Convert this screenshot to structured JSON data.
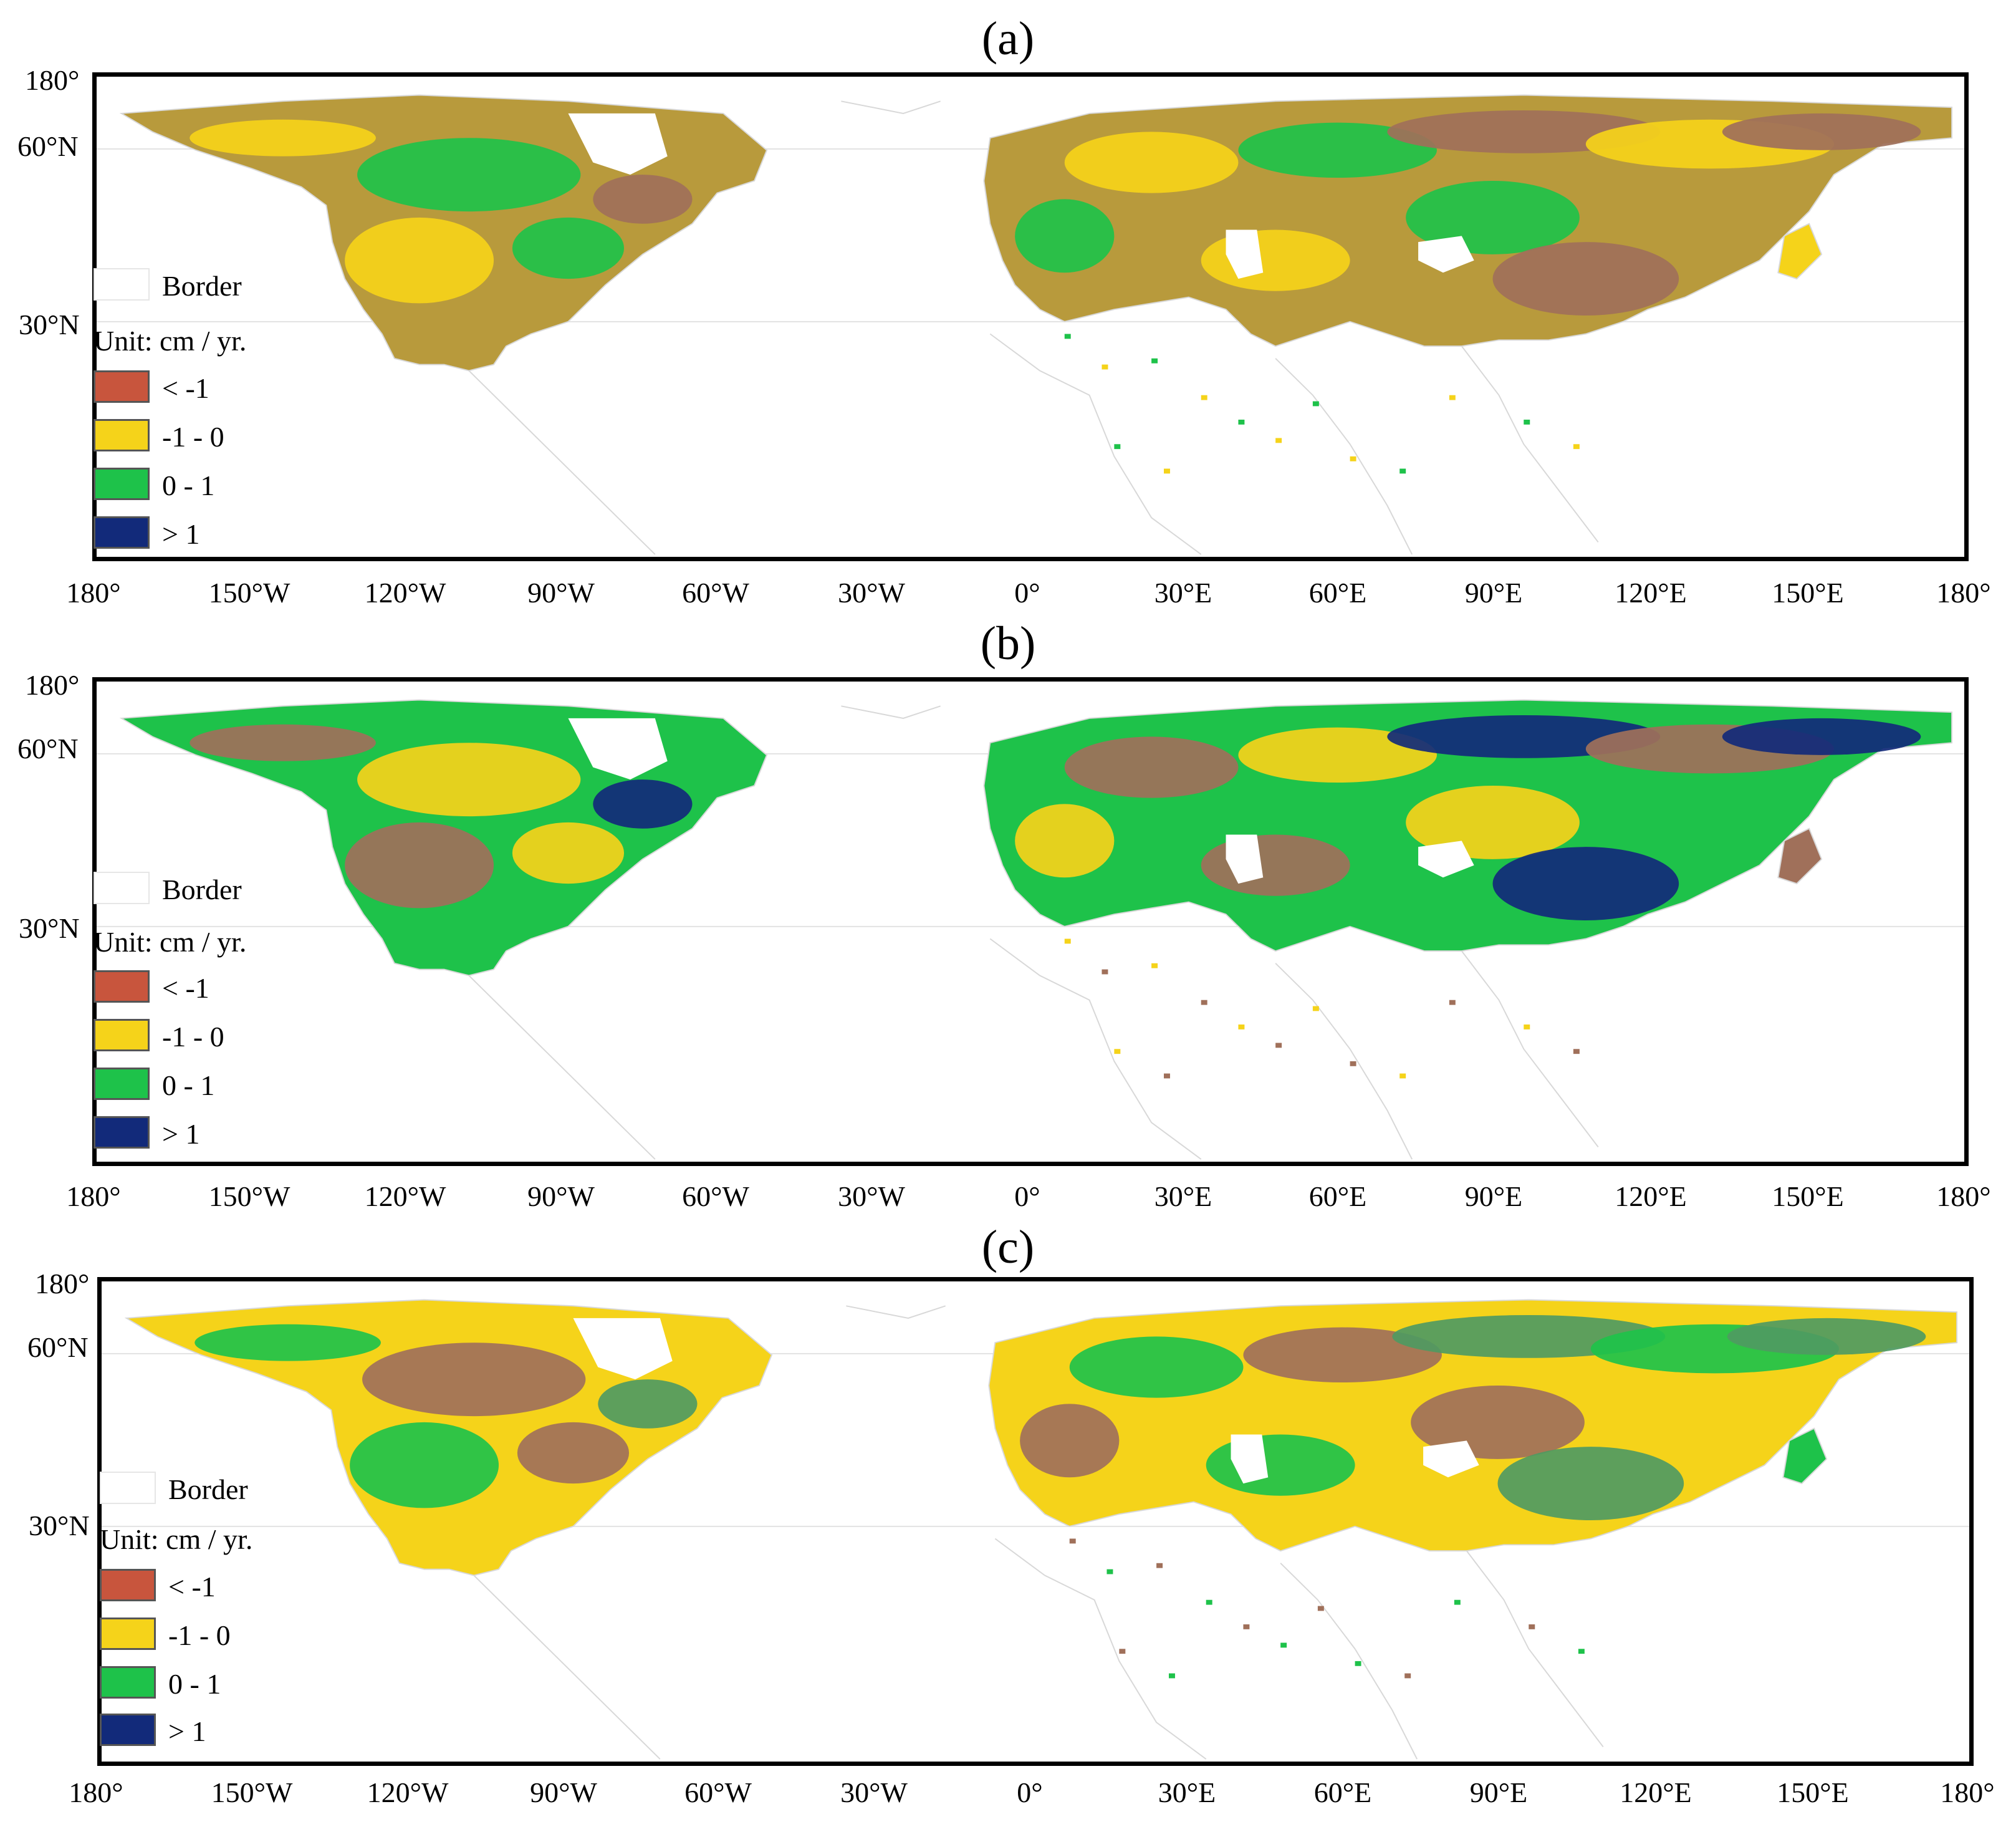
{
  "colors": {
    "lt_neg1": "#c8553d",
    "neg1_0": "#f5d31a",
    "p0_1": "#1ec24a",
    "gt1": "#122a7a",
    "olive": "#b89a3c",
    "brown": "#a0705a",
    "darkgreen": "#4f9a62",
    "navy_mix": "#2b3f7a",
    "border_line": "#d8d8d8"
  },
  "axes": {
    "x_ticks": [
      "180°",
      "150°W",
      "120°W",
      "90°W",
      "60°W",
      "30°W",
      "0°",
      "30°E",
      "60°E",
      "90°E",
      "120°E",
      "150°E",
      "180°"
    ],
    "y_ticks": [
      "180°",
      "60°N",
      "30°N"
    ]
  },
  "legend": {
    "border_label": "Border",
    "unit_label": "Unit: cm / yr.",
    "classes": [
      {
        "label": "< -1",
        "color": "#c8553d"
      },
      {
        "label": "-1 - 0",
        "color": "#f5d31a"
      },
      {
        "label": "0 - 1",
        "color": "#1ec24a"
      },
      {
        "label": "> 1",
        "color": "#122a7a"
      }
    ]
  },
  "panels": [
    {
      "label": "(a)",
      "dominant": "olive",
      "secondary": "neg1_0",
      "tertiary": "p0_1",
      "highlight": "brown"
    },
    {
      "label": "(b)",
      "dominant": "p0_1",
      "secondary": "brown",
      "tertiary": "neg1_0",
      "highlight": "gt1"
    },
    {
      "label": "(c)",
      "dominant": "neg1_0",
      "secondary": "p0_1",
      "tertiary": "brown",
      "highlight": "darkgreen"
    }
  ]
}
